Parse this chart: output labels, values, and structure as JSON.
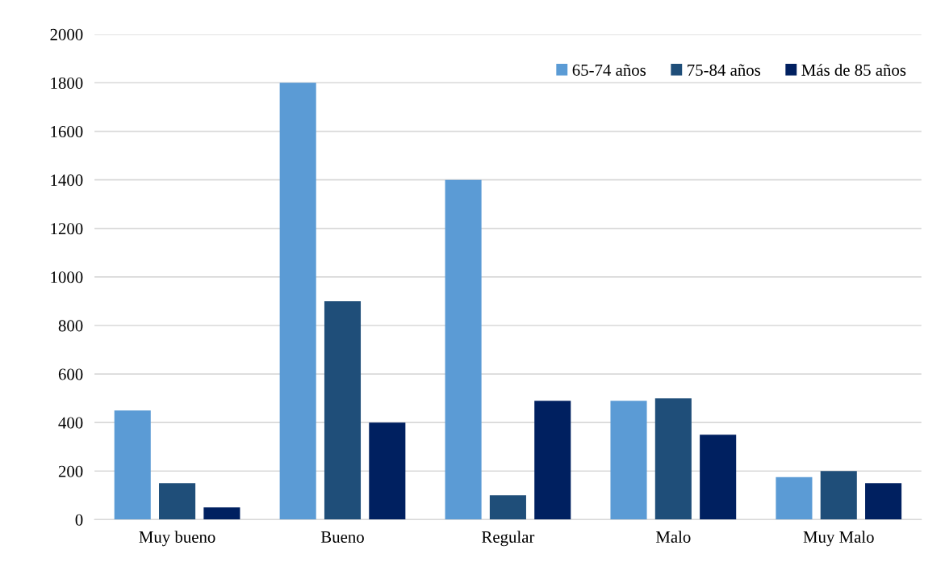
{
  "chart_data": {
    "type": "bar",
    "categories": [
      "Muy bueno",
      "Bueno",
      "Regular",
      "Malo",
      "Muy Malo"
    ],
    "series": [
      {
        "name": "65-74 años",
        "color": "#5b9bd5",
        "values": [
          450,
          1800,
          1400,
          490,
          175
        ]
      },
      {
        "name": "75-84 años",
        "color": "#1f4e79",
        "values": [
          150,
          900,
          100,
          500,
          200
        ]
      },
      {
        "name": "Más de 85 años",
        "color": "#002060",
        "values": [
          50,
          400,
          490,
          350,
          150
        ]
      }
    ],
    "ylim": [
      0,
      2000
    ],
    "yticks": [
      0,
      200,
      400,
      600,
      800,
      1000,
      1200,
      1400,
      1600,
      1800,
      2000
    ],
    "grid": "y",
    "legend": "top right"
  }
}
